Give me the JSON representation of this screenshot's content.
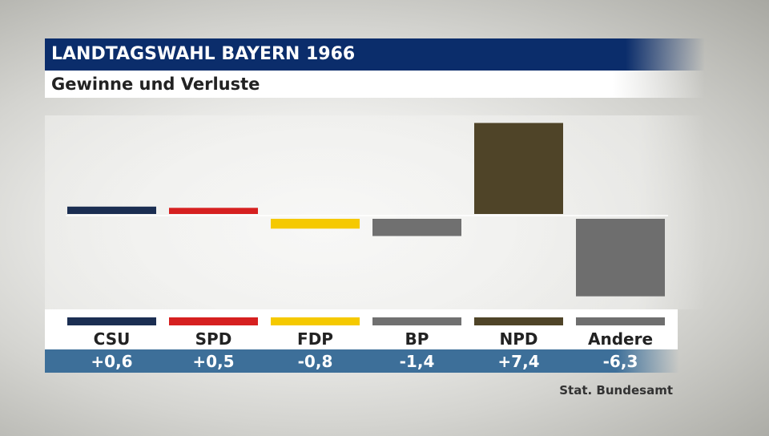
{
  "header": {
    "title": "LANDTAGSWAHL BAYERN 1966",
    "subtitle": "Gewinne und Verluste"
  },
  "source": "Stat. Bundesamt",
  "chart_data": {
    "type": "bar",
    "title": "LANDTAGSWAHL BAYERN 1966",
    "subtitle": "Gewinne und Verluste",
    "categories": [
      "CSU",
      "SPD",
      "FDP",
      "BP",
      "NPD",
      "Andere"
    ],
    "values": [
      0.6,
      0.5,
      -0.8,
      -1.4,
      7.4,
      -6.3
    ],
    "value_labels": [
      "+0,6",
      "+0,5",
      "-0,8",
      "-1,4",
      "+7,4",
      "-6,3"
    ],
    "colors": [
      "#1b2e52",
      "#d62020",
      "#f5c900",
      "#707070",
      "#4f4428",
      "#6e6e6e"
    ],
    "ylim": [
      -7.5,
      7.5
    ],
    "grid": false,
    "legend": "none",
    "xlabel": "",
    "ylabel": ""
  }
}
